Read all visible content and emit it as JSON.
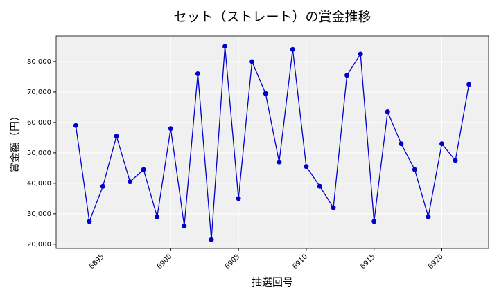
{
  "chart_data": {
    "type": "line",
    "title": "セット（ストレート）の賞金推移",
    "x_label": "抽選回号",
    "y_label": "賞金額（円）",
    "x": [
      6893,
      6894,
      6895,
      6896,
      6897,
      6898,
      6899,
      6900,
      6901,
      6902,
      6903,
      6904,
      6905,
      6906,
      6907,
      6908,
      6909,
      6910,
      6911,
      6912,
      6913,
      6914,
      6915,
      6916,
      6917,
      6918,
      6919,
      6920,
      6921,
      6922
    ],
    "series": [
      {
        "name": "賞金額",
        "color": "#0000cc",
        "values": [
          59000,
          27500,
          39000,
          55500,
          40500,
          44500,
          29000,
          58000,
          26000,
          76000,
          21500,
          85000,
          35000,
          80000,
          69500,
          47000,
          84000,
          45500,
          39000,
          32000,
          75500,
          82500,
          27500,
          63500,
          53000,
          44500,
          29000,
          53000,
          47500,
          72500
        ]
      }
    ],
    "xlim": [
      6891.55,
      6923.45
    ],
    "xticks": [
      6895,
      6900,
      6905,
      6910,
      6915,
      6920
    ],
    "ylim": [
      18600,
      88400
    ],
    "yticks": [
      {
        "value": 20000,
        "label": "20,000"
      },
      {
        "value": 30000,
        "label": "30,000"
      },
      {
        "value": 40000,
        "label": "40,000"
      },
      {
        "value": 50000,
        "label": "50,000"
      },
      {
        "value": 60000,
        "label": "60,000"
      },
      {
        "value": 70000,
        "label": "70,000"
      },
      {
        "value": 80000,
        "label": "80,000"
      }
    ],
    "grid": true
  }
}
